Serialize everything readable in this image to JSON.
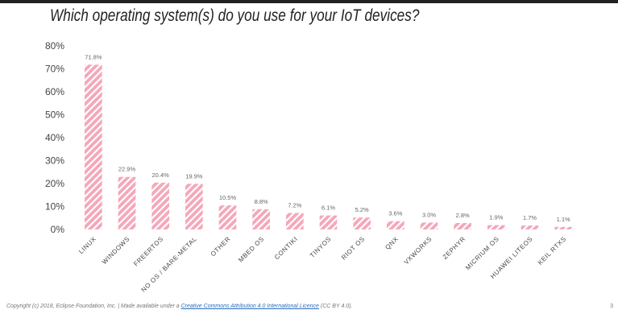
{
  "title": "Which operating system(s) do you use for your IoT devices?",
  "footer": {
    "prefix": "Copyright (c) 2018, Eclipse Foundation, Inc. | Made available under a",
    "link_text": "Creative Commons Attribution 4.0 International Licence",
    "suffix": "(CC BY 4.0)."
  },
  "page_number": "3",
  "colors": {
    "bar": "#f4a7b9",
    "bar_hatch": "#ffffff"
  },
  "chart_data": {
    "type": "bar",
    "title": "Which operating system(s) do you use for your IoT devices?",
    "categories": [
      "LINUX",
      "WINDOWS",
      "FREERTOS",
      "NO OS / BARE-METAL",
      "OTHER",
      "MBED OS",
      "CONTIKI",
      "TINYOS",
      "RIOT OS",
      "QNX",
      "VXWORKS",
      "ZEPHYR",
      "MICRIUM OS",
      "HUAWEI LITEOS",
      "KEIL RTXS"
    ],
    "values": [
      71.8,
      22.9,
      20.4,
      19.9,
      10.5,
      8.8,
      7.2,
      6.1,
      5.2,
      3.6,
      3.0,
      2.8,
      1.9,
      1.7,
      1.1
    ],
    "value_labels": [
      "71.8%",
      "22.9%",
      "20.4%",
      "19.9%",
      "10.5%",
      "8.8%",
      "7.2%",
      "6.1%",
      "5.2%",
      "3.6%",
      "3.0%",
      "2.8%",
      "1.9%",
      "1.7%",
      "1.1%"
    ],
    "yticks": [
      "0%",
      "10%",
      "20%",
      "30%",
      "40%",
      "50%",
      "60%",
      "70%",
      "80%"
    ],
    "ylim": [
      0,
      80
    ],
    "grid": false,
    "xlabel": "",
    "ylabel": ""
  }
}
